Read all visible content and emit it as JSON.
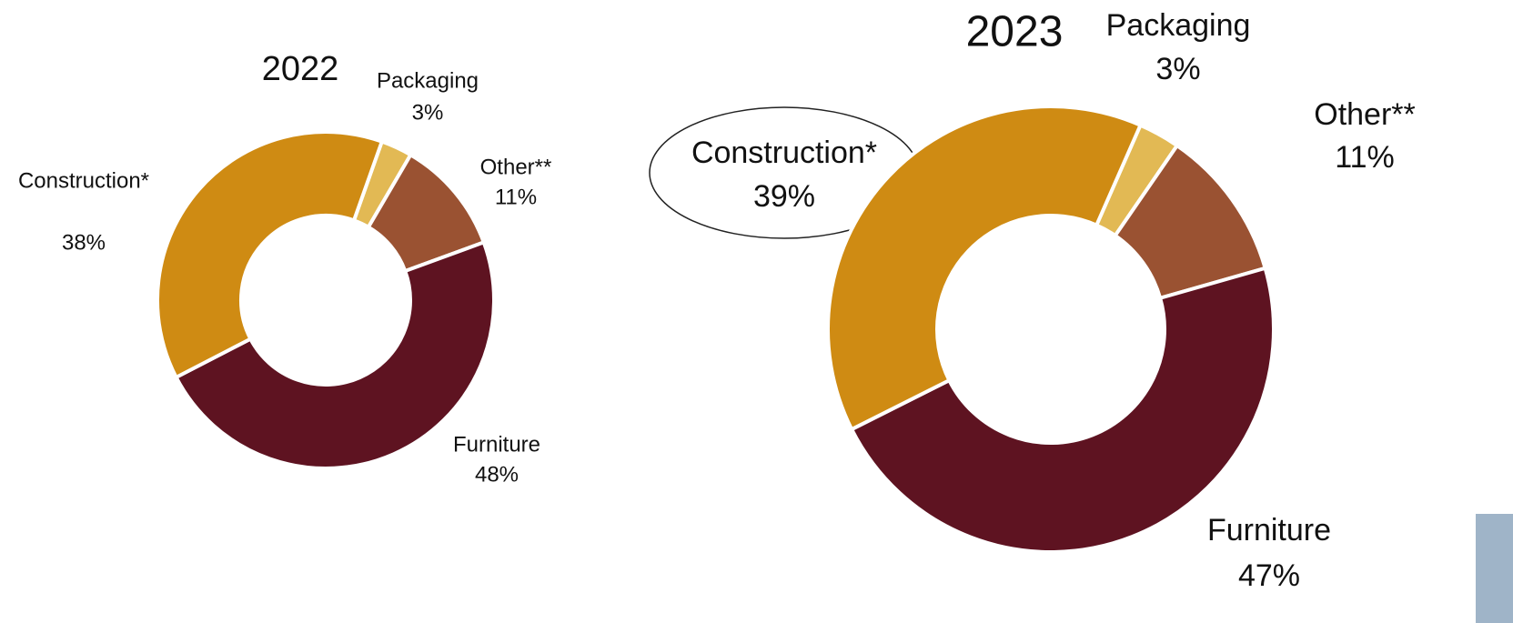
{
  "chart_data": [
    {
      "type": "donut",
      "title": "2022",
      "categories": [
        "Packaging",
        "Other**",
        "Furniture",
        "Construction*"
      ],
      "values": [
        3,
        11,
        48,
        38
      ],
      "value_labels": [
        "3%",
        "11%",
        "48%",
        "38%"
      ],
      "colors": [
        "#e2b954",
        "#9a5232",
        "#5e1321",
        "#cf8b13"
      ]
    },
    {
      "type": "donut",
      "title": "2023",
      "categories": [
        "Packaging",
        "Other**",
        "Furniture",
        "Construction*"
      ],
      "values": [
        3,
        11,
        47,
        39
      ],
      "value_labels": [
        "3%",
        "11%",
        "47%",
        "39%"
      ],
      "colors": [
        "#e2b954",
        "#9a5232",
        "#5e1321",
        "#cf8b13"
      ]
    }
  ]
}
